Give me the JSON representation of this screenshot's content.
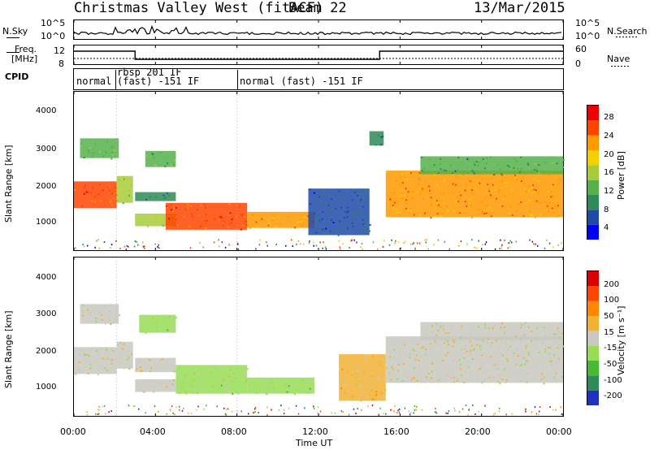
{
  "header": {
    "station": "Christmas Valley West (fitACF)",
    "beam": "Beam 22",
    "date": "13/Mar/2015"
  },
  "noise_panel": {
    "left_label": "N.Sky",
    "right_label": "N.Search",
    "left_ticks": [
      "10^5",
      "10^0"
    ],
    "right_ticks": [
      "10^5",
      "10^0"
    ]
  },
  "freq_panel": {
    "left_label_1": "Freq.",
    "left_label_2": "[MHz]",
    "left_ticks": [
      "12",
      "8"
    ],
    "right_label": "Nave",
    "right_ticks": [
      "60",
      "0"
    ]
  },
  "cpid_panel": {
    "label": "CPID",
    "modes": [
      {
        "text": "normal"
      },
      {
        "text": "rbsp 201 IF"
      },
      {
        "text": "(fast) -151 IF"
      },
      {
        "text": "normal (fast) -151 IF"
      }
    ]
  },
  "power_panel": {
    "ylabel": "Slant Range [km]",
    "yticks": [
      "4000",
      "3000",
      "2000",
      "1000"
    ],
    "colorbar_label": "Power [dB]",
    "colorbar_ticks": [
      "28",
      "24",
      "20",
      "16",
      "12",
      "8",
      "4"
    ],
    "colors": [
      "#0000ff",
      "#1f4aa8",
      "#2e8b57",
      "#55b04a",
      "#a7cc3a",
      "#f5d000",
      "#ff9900",
      "#ff4400",
      "#ee0000"
    ]
  },
  "velocity_panel": {
    "ylabel": "Slant Range [km]",
    "yticks": [
      "4000",
      "3000",
      "2000",
      "1000"
    ],
    "colorbar_label": "Velocity [m s⁻¹]",
    "colorbar_ticks": [
      "200",
      "100",
      "50",
      "15",
      "-15",
      "-50",
      "-100",
      "-200"
    ],
    "colors": [
      "#2030c0",
      "#2e8b57",
      "#44bb33",
      "#99dd55",
      "#c8c8c0",
      "#f2b233",
      "#ff8800",
      "#ff4400",
      "#dd0000"
    ]
  },
  "xaxis": {
    "ticks": [
      "00:00",
      "04:00",
      "08:00",
      "12:00",
      "16:00",
      "20:00",
      "00:00"
    ],
    "label": "Time UT"
  },
  "chart_data": [
    {
      "type": "heatmap",
      "title": "Power",
      "xlabel": "Time UT",
      "ylabel": "Slant Range [km]",
      "x_range_hours": [
        0,
        24
      ],
      "ylim": [
        180,
        4600
      ],
      "colorbar_range_dB": [
        0,
        30
      ],
      "regions": [
        {
          "t0": 0.0,
          "t1": 2.1,
          "r0": 1350,
          "r1": 2100,
          "level": 24
        },
        {
          "t0": 0.3,
          "t1": 2.2,
          "r0": 2750,
          "r1": 3300,
          "level": 12
        },
        {
          "t0": 2.1,
          "t1": 2.9,
          "r0": 1500,
          "r1": 2250,
          "level": 14
        },
        {
          "t0": 3.0,
          "t1": 5.0,
          "r0": 1550,
          "r1": 1800,
          "level": 8
        },
        {
          "t0": 3.0,
          "t1": 5.0,
          "r0": 850,
          "r1": 1200,
          "level": 14
        },
        {
          "t0": 3.5,
          "t1": 5.0,
          "r0": 2500,
          "r1": 2950,
          "level": 12
        },
        {
          "t0": 4.5,
          "t1": 8.5,
          "r0": 750,
          "r1": 1500,
          "level": 24
        },
        {
          "t0": 8.5,
          "t1": 11.8,
          "r0": 800,
          "r1": 1250,
          "level": 22
        },
        {
          "t0": 11.5,
          "t1": 14.5,
          "r0": 600,
          "r1": 1900,
          "level": 6
        },
        {
          "t0": 15.3,
          "t1": 24.0,
          "r0": 1100,
          "r1": 2400,
          "level": 22
        },
        {
          "t0": 17.0,
          "t1": 24.0,
          "r0": 2300,
          "r1": 2800,
          "level": 10
        },
        {
          "t0": 14.5,
          "t1": 15.2,
          "r0": 3100,
          "r1": 3500,
          "level": 8
        }
      ]
    },
    {
      "type": "heatmap",
      "title": "Velocity",
      "xlabel": "Time UT",
      "ylabel": "Slant Range [km]",
      "x_range_hours": [
        0,
        24
      ],
      "ylim": [
        180,
        4600
      ],
      "colorbar_range_ms": [
        -250,
        250
      ],
      "regions": [
        {
          "t0": 0.0,
          "t1": 2.1,
          "r0": 1350,
          "r1": 2100,
          "level": 0
        },
        {
          "t0": 0.3,
          "t1": 2.2,
          "r0": 2750,
          "r1": 3300,
          "level": 0
        },
        {
          "t0": 2.1,
          "t1": 2.9,
          "r0": 1500,
          "r1": 2250,
          "level": 0
        },
        {
          "t0": 3.0,
          "t1": 5.0,
          "r0": 1400,
          "r1": 1800,
          "level": 0
        },
        {
          "t0": 3.0,
          "t1": 5.0,
          "r0": 850,
          "r1": 1200,
          "level": 0
        },
        {
          "t0": 3.2,
          "t1": 5.0,
          "r0": 2500,
          "r1": 3000,
          "level": -30
        },
        {
          "t0": 5.0,
          "t1": 8.5,
          "r0": 800,
          "r1": 1600,
          "level": -30
        },
        {
          "t0": 8.5,
          "t1": 11.8,
          "r0": 800,
          "r1": 1250,
          "level": -30
        },
        {
          "t0": 13.0,
          "t1": 15.3,
          "r0": 600,
          "r1": 1900,
          "level": 30
        },
        {
          "t0": 15.3,
          "t1": 24.0,
          "r0": 1100,
          "r1": 2400,
          "level": 0
        },
        {
          "t0": 17.0,
          "t1": 24.0,
          "r0": 2300,
          "r1": 2800,
          "level": 0
        }
      ]
    }
  ]
}
